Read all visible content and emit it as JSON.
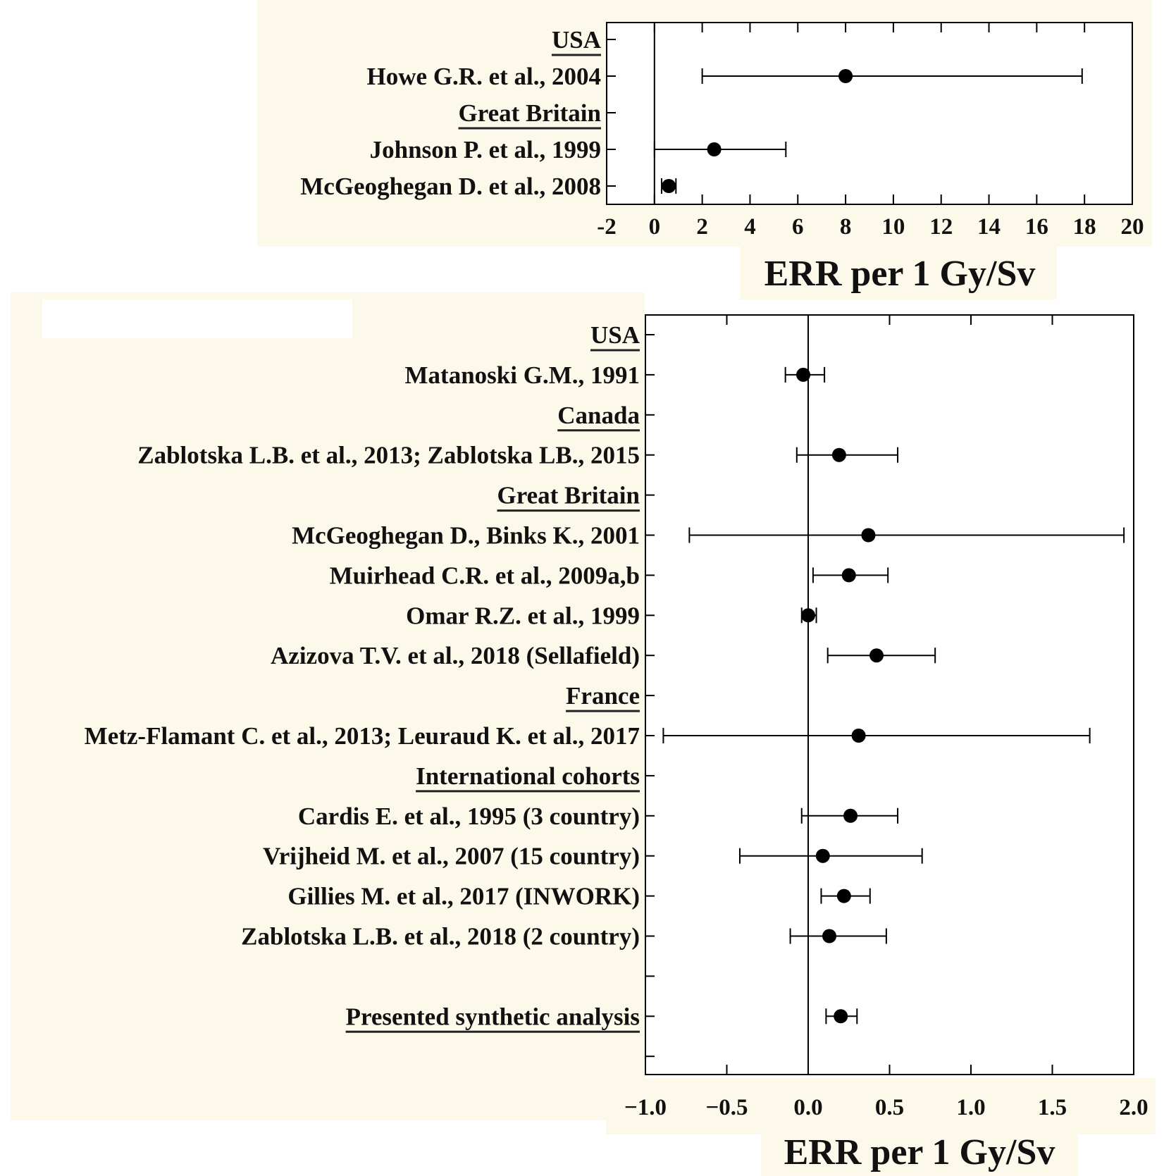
{
  "colors": {
    "background_cream": "#fcf8ea",
    "ink": "#000000"
  },
  "chart_data": [
    {
      "type": "forest",
      "xlabel": "ERR per 1 Gy/Sv",
      "xlim": [
        -2,
        20
      ],
      "xticks": [
        "-2",
        "0",
        "2",
        "4",
        "6",
        "8",
        "10",
        "12",
        "14",
        "16",
        "18",
        "20"
      ],
      "xtick_values": [
        -2,
        0,
        2,
        4,
        6,
        8,
        10,
        12,
        14,
        16,
        18,
        20
      ],
      "reference_line": 0,
      "rows": [
        {
          "label": "USA",
          "header": true
        },
        {
          "label": "Howe G.R. et al., 2004",
          "value": 8.0,
          "lower": 2.0,
          "upper": 17.9
        },
        {
          "label": "Great Britain",
          "header": true
        },
        {
          "label": "Johnson P. et al., 1999",
          "value": 2.5,
          "lower": 0.0,
          "upper": 5.5
        },
        {
          "label": "McGeoghegan D. et al., 2008",
          "value": 0.6,
          "lower": 0.3,
          "upper": 0.9
        }
      ]
    },
    {
      "type": "forest",
      "xlabel": "ERR per 1 Gy/Sv",
      "xlim": [
        -1.0,
        2.0
      ],
      "xticks": [
        "−1.0",
        "−0.5",
        "0.0",
        "0.5",
        "1.0",
        "1.5",
        "2.0"
      ],
      "xtick_values": [
        -1.0,
        -0.5,
        0.0,
        0.5,
        1.0,
        1.5,
        2.0
      ],
      "reference_line": 0,
      "rows": [
        {
          "label": "USA",
          "header": true
        },
        {
          "label": "Matanoski G.M., 1991",
          "value": -0.03,
          "lower": -0.14,
          "upper": 0.1
        },
        {
          "label": "Canada",
          "header": true
        },
        {
          "label": "Zablotska L.B. et al., 2013; Zablotska LB., 2015",
          "value": 0.19,
          "lower": -0.07,
          "upper": 0.55
        },
        {
          "label": "Great Britain",
          "header": true
        },
        {
          "label": "McGeoghegan D., Binks K., 2001",
          "value": 0.37,
          "lower": -0.73,
          "upper": 1.94
        },
        {
          "label": "Muirhead C.R. et al., 2009a,b",
          "value": 0.25,
          "lower": 0.03,
          "upper": 0.49
        },
        {
          "label": "Omar R.Z. et al., 1999",
          "value": 0.0,
          "lower": -0.04,
          "upper": 0.05
        },
        {
          "label": "Azizova T.V. et al., 2018 (Sellafield)",
          "value": 0.42,
          "lower": 0.12,
          "upper": 0.78
        },
        {
          "label": "France",
          "header": true
        },
        {
          "label": "Metz-Flamant C. et al., 2013; Leuraud K. et al., 2017",
          "value": 0.31,
          "lower": -0.89,
          "upper": 1.73
        },
        {
          "label": "International cohorts",
          "header": true
        },
        {
          "label": "Cardis E. et al., 1995 (3 country)",
          "value": 0.26,
          "lower": -0.04,
          "upper": 0.55
        },
        {
          "label": "Vrijheid M. et al., 2007 (15 country)",
          "value": 0.09,
          "lower": -0.42,
          "upper": 0.7
        },
        {
          "label": "Gillies M. et al., 2017 (INWORK)",
          "value": 0.22,
          "lower": 0.08,
          "upper": 0.38
        },
        {
          "label": "Zablotska L.B. et al., 2018 (2 country)",
          "value": 0.13,
          "lower": -0.11,
          "upper": 0.48
        },
        {
          "label": "",
          "spacer": true
        },
        {
          "label": "Presented synthetic analysis",
          "header": true,
          "value": 0.2,
          "lower": 0.11,
          "upper": 0.3
        },
        {
          "label": "",
          "spacer": true
        }
      ]
    }
  ]
}
